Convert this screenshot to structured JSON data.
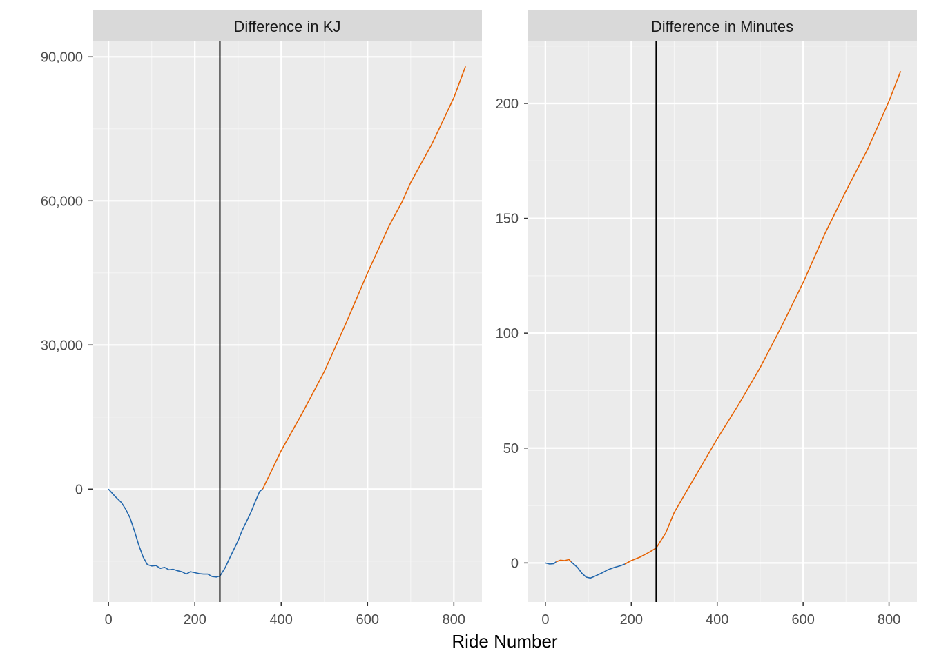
{
  "xlabel": "Ride Number",
  "chart_data": [
    {
      "type": "line",
      "title": "Difference in KJ",
      "xlabel": "Ride Number",
      "ylabel": "",
      "xlim": [
        -37,
        865
      ],
      "ylim": [
        -23500,
        93200
      ],
      "x_ticks": [
        0,
        200,
        400,
        600,
        800
      ],
      "x_tick_labels": [
        "0",
        "200",
        "400",
        "600",
        "800"
      ],
      "y_ticks": [
        0,
        30000,
        60000,
        90000
      ],
      "y_tick_labels": [
        "0",
        "30,000",
        "60,000",
        "90,000"
      ],
      "vline_x": 258,
      "grid": true,
      "series": [
        {
          "color": "#2166ac",
          "x": [
            0,
            15,
            30,
            40,
            50,
            60,
            70,
            80,
            90,
            100,
            110,
            120,
            130,
            140,
            150,
            160,
            170,
            180,
            190,
            200,
            210,
            220,
            230,
            240,
            250,
            258,
            270,
            280,
            290,
            300,
            310,
            320,
            330,
            340,
            350,
            357
          ],
          "y": [
            0,
            -1500,
            -2800,
            -4200,
            -6000,
            -8700,
            -11600,
            -14100,
            -15700,
            -16000,
            -15900,
            -16500,
            -16300,
            -16800,
            -16700,
            -17000,
            -17200,
            -17700,
            -17200,
            -17400,
            -17600,
            -17700,
            -17700,
            -18200,
            -18300,
            -18100,
            -16400,
            -14500,
            -12600,
            -10800,
            -8500,
            -6700,
            -4800,
            -2600,
            -500,
            0
          ]
        },
        {
          "color": "#e66101",
          "x": [
            357,
            400,
            450,
            500,
            550,
            600,
            650,
            680,
            700,
            750,
            800,
            827
          ],
          "y": [
            0,
            8000,
            16000,
            24500,
            34500,
            45000,
            54800,
            59800,
            63800,
            72000,
            81500,
            88000
          ]
        }
      ]
    },
    {
      "type": "line",
      "title": "Difference in Minutes",
      "xlabel": "Ride Number",
      "ylabel": "",
      "xlim": [
        -40,
        865
      ],
      "ylim": [
        -17,
        227
      ],
      "x_ticks": [
        0,
        200,
        400,
        600,
        800
      ],
      "x_tick_labels": [
        "0",
        "200",
        "400",
        "600",
        "800"
      ],
      "y_ticks": [
        0,
        50,
        100,
        150,
        200
      ],
      "y_tick_labels": [
        "0",
        "50",
        "100",
        "150",
        "200"
      ],
      "vline_x": 258,
      "grid": true,
      "series": [
        {
          "color": "#2166ac",
          "x": [
            0,
            10,
            20,
            25
          ],
          "y": [
            0,
            -0.5,
            -0.3,
            0.5
          ]
        },
        {
          "color": "#e66101",
          "x": [
            25,
            35,
            45,
            55,
            60
          ],
          "y": [
            0.5,
            1.2,
            1.0,
            1.5,
            0.5
          ]
        },
        {
          "color": "#2166ac",
          "x": [
            60,
            75,
            85,
            95,
            105,
            115,
            130,
            145,
            160,
            175,
            185
          ],
          "y": [
            0.5,
            -2.0,
            -4.5,
            -6.2,
            -6.6,
            -5.8,
            -4.5,
            -3.0,
            -2.0,
            -1.2,
            -0.5
          ]
        },
        {
          "color": "#e66101",
          "x": [
            185,
            200,
            220,
            240,
            258,
            280,
            300,
            350,
            400,
            450,
            500,
            550,
            600,
            650,
            700,
            750,
            800,
            827
          ],
          "y": [
            -0.5,
            1.0,
            2.5,
            4.5,
            6.5,
            13.0,
            22.0,
            38.0,
            54.0,
            69.0,
            85.0,
            103.0,
            122.0,
            143.0,
            162.0,
            180.0,
            201.0,
            214.0
          ]
        }
      ]
    }
  ]
}
